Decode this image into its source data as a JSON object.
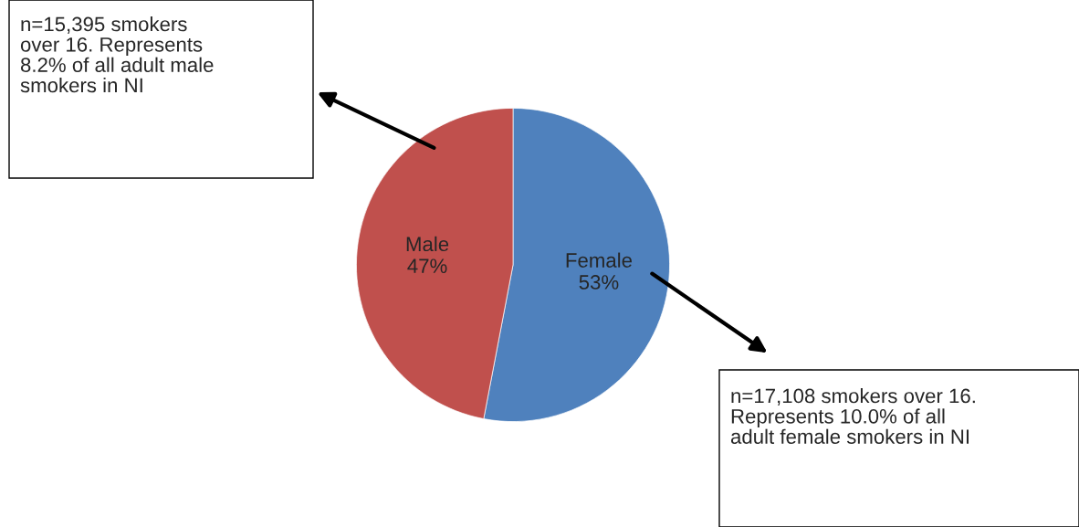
{
  "chart_data": {
    "type": "pie",
    "categories": [
      "Female",
      "Male"
    ],
    "values": [
      53,
      47
    ],
    "value_labels": [
      "53%",
      "47%"
    ],
    "colors": [
      "#4f81bd",
      "#c0504d"
    ],
    "annotations": [
      "n=15,395 smokers\nover 16. Represents\n8.2% of all adult male\nsmokers in NI",
      "n=17,108 smokers over 16.\nRepresents 10.0% of all\nadult female smokers in NI"
    ],
    "legend": false
  }
}
